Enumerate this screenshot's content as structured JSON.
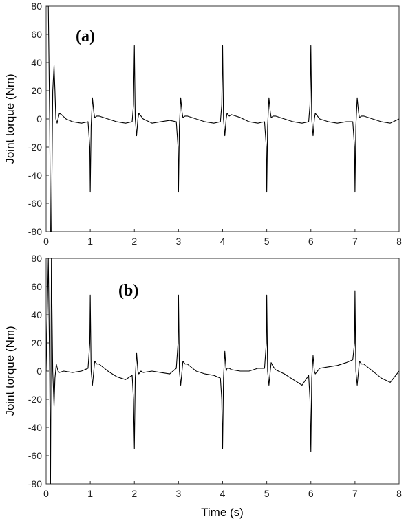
{
  "chart_data": [
    {
      "type": "line",
      "panel_label": "(a)",
      "xlabel": "",
      "ylabel": "Joint torque (Nm)",
      "xlim": [
        0,
        8
      ],
      "ylim": [
        -80,
        80
      ],
      "x_ticks": [
        0,
        1,
        2,
        3,
        4,
        5,
        6,
        7,
        8
      ],
      "y_ticks": [
        80,
        60,
        40,
        20,
        0,
        -20,
        -40,
        -60,
        -80
      ],
      "grid": false,
      "series": [
        {
          "color": "#000000",
          "x": [
            0,
            0.05,
            0.08,
            0.1,
            0.12,
            0.15,
            0.18,
            0.2,
            0.22,
            0.25,
            0.27,
            0.3,
            0.35,
            0.45,
            0.6,
            0.8,
            0.95,
            0.99,
            1.0,
            1.02,
            1.05,
            1.08,
            1.1,
            1.15,
            1.2,
            1.4,
            1.6,
            1.8,
            1.95,
            1.98,
            2.0,
            2.02,
            2.05,
            2.08,
            2.1,
            2.15,
            2.2,
            2.4,
            2.6,
            2.8,
            2.95,
            2.99,
            3.0,
            3.02,
            3.05,
            3.08,
            3.1,
            3.15,
            3.2,
            3.4,
            3.6,
            3.8,
            3.95,
            3.98,
            4.0,
            4.02,
            4.05,
            4.08,
            4.1,
            4.15,
            4.2,
            4.4,
            4.6,
            4.8,
            4.95,
            4.99,
            5.0,
            5.02,
            5.05,
            5.08,
            5.1,
            5.15,
            5.2,
            5.4,
            5.6,
            5.8,
            5.95,
            5.98,
            6.0,
            6.02,
            6.05,
            6.08,
            6.1,
            6.15,
            6.2,
            6.4,
            6.6,
            6.8,
            6.95,
            6.99,
            7.0,
            7.02,
            7.05,
            7.08,
            7.1,
            7.15,
            7.2,
            7.4,
            7.6,
            7.8,
            8.0
          ],
          "y": [
            80,
            80,
            0,
            -80,
            -80,
            20,
            38,
            20,
            0,
            -3,
            0,
            4,
            3,
            0,
            -2,
            -3,
            -2,
            -20,
            -52,
            -5,
            15,
            5,
            1,
            2,
            2,
            0,
            -2,
            -3,
            -2,
            10,
            52,
            0,
            -12,
            0,
            4,
            2,
            0,
            -3,
            -2,
            -1,
            -2,
            -20,
            -52,
            -5,
            15,
            5,
            1,
            2,
            2,
            0,
            -2,
            -3,
            -2,
            10,
            52,
            0,
            -12,
            0,
            4,
            2,
            3,
            1,
            -2,
            -3,
            -2,
            -20,
            -52,
            -5,
            15,
            5,
            1,
            2,
            2,
            0,
            -2,
            -3,
            -2,
            10,
            52,
            0,
            -12,
            0,
            4,
            2,
            0,
            -2,
            -3,
            -2,
            -2,
            -20,
            -52,
            -5,
            15,
            5,
            1,
            2,
            2,
            0,
            -2,
            -3,
            0
          ]
        }
      ]
    },
    {
      "type": "line",
      "panel_label": "(b)",
      "xlabel": "Time (s)",
      "ylabel": "Joint torque (Nm)",
      "xlim": [
        0,
        8
      ],
      "ylim": [
        -80,
        80
      ],
      "x_ticks": [
        0,
        1,
        2,
        3,
        4,
        5,
        6,
        7,
        8
      ],
      "y_ticks": [
        80,
        60,
        40,
        20,
        0,
        -20,
        -40,
        -60,
        -80
      ],
      "grid": false,
      "series": [
        {
          "color": "#000000",
          "x": [
            0,
            0.05,
            0.08,
            0.1,
            0.12,
            0.15,
            0.18,
            0.2,
            0.23,
            0.27,
            0.3,
            0.4,
            0.6,
            0.8,
            0.95,
            0.99,
            1.0,
            1.02,
            1.05,
            1.08,
            1.1,
            1.15,
            1.2,
            1.4,
            1.6,
            1.8,
            1.95,
            1.98,
            2.0,
            2.02,
            2.05,
            2.08,
            2.1,
            2.15,
            2.2,
            2.4,
            2.6,
            2.8,
            2.95,
            2.99,
            3.0,
            3.02,
            3.05,
            3.08,
            3.1,
            3.15,
            3.2,
            3.4,
            3.6,
            3.8,
            3.95,
            3.98,
            4.0,
            4.02,
            4.05,
            4.08,
            4.1,
            4.15,
            4.2,
            4.4,
            4.6,
            4.8,
            4.95,
            4.99,
            5.0,
            5.02,
            5.05,
            5.08,
            5.1,
            5.15,
            5.2,
            5.4,
            5.6,
            5.8,
            5.95,
            5.98,
            6.0,
            6.02,
            6.05,
            6.08,
            6.1,
            6.15,
            6.2,
            6.4,
            6.6,
            6.8,
            6.95,
            6.99,
            7.0,
            7.02,
            7.05,
            7.08,
            7.1,
            7.15,
            7.2,
            7.4,
            7.6,
            7.8,
            8.0
          ],
          "y": [
            0,
            80,
            0,
            -80,
            80,
            0,
            -25,
            -5,
            5,
            0,
            -1,
            0,
            -1,
            0,
            2,
            20,
            54,
            0,
            -10,
            0,
            7,
            5,
            5,
            0,
            -4,
            -6,
            -3,
            -20,
            -55,
            -5,
            13,
            0,
            -2,
            0,
            -1,
            0,
            -1,
            -2,
            2,
            20,
            54,
            0,
            -10,
            0,
            7,
            5,
            5,
            0,
            -2,
            -3,
            -5,
            -20,
            -55,
            -5,
            14,
            0,
            2,
            2,
            1,
            0,
            0,
            2,
            2,
            20,
            54,
            0,
            -10,
            0,
            6,
            3,
            1,
            -2,
            -6,
            -10,
            -3,
            -20,
            -57,
            -5,
            11,
            0,
            -2,
            0,
            2,
            3,
            4,
            6,
            8,
            20,
            57,
            0,
            -10,
            0,
            7,
            5,
            5,
            0,
            -5,
            -8,
            0
          ]
        }
      ]
    }
  ]
}
